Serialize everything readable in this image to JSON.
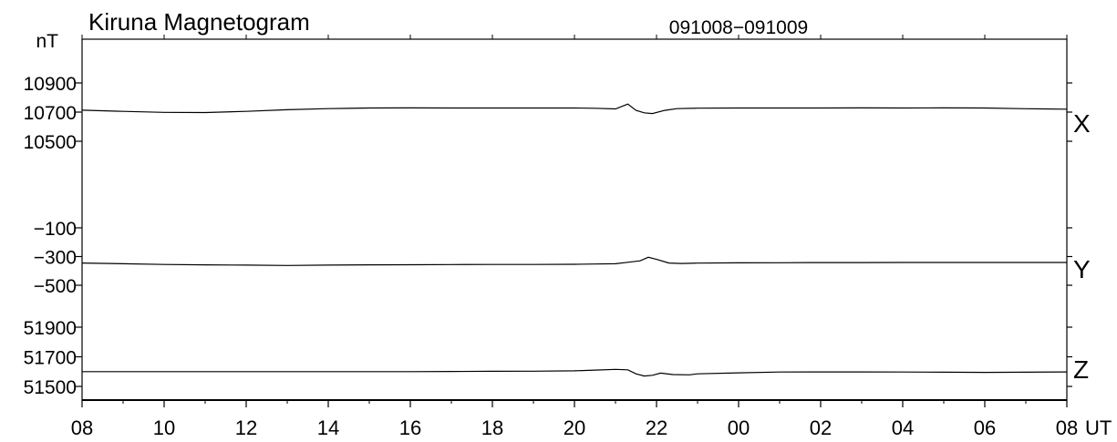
{
  "chart_data": {
    "type": "line",
    "title": "Kiruna Magnetogram",
    "date_range": "091008−091009",
    "y_unit": "nT",
    "x_unit": "UT",
    "x_tick_labels": [
      "08",
      "10",
      "12",
      "14",
      "16",
      "18",
      "20",
      "22",
      "00",
      "02",
      "04",
      "06",
      "08"
    ],
    "x_range_hours": [
      8,
      32
    ],
    "grid": false,
    "panels": [
      {
        "name": "X",
        "tick_labels": [
          "10900",
          "10700",
          "10500"
        ],
        "tick_values": [
          10900,
          10700,
          10500
        ],
        "x": [
          8,
          9,
          10,
          11,
          12,
          13,
          14,
          15,
          16,
          17,
          18,
          19,
          20,
          20.5,
          21,
          21.3,
          21.5,
          21.7,
          21.9,
          22.2,
          22.5,
          23,
          24,
          25,
          26,
          27,
          28,
          29,
          30,
          31,
          32
        ],
        "values": [
          10713,
          10705,
          10698,
          10697,
          10705,
          10716,
          10724,
          10728,
          10729,
          10728,
          10728,
          10728,
          10728,
          10726,
          10722,
          10755,
          10712,
          10695,
          10690,
          10712,
          10724,
          10727,
          10728,
          10728,
          10728,
          10729,
          10728,
          10729,
          10728,
          10723,
          10720
        ]
      },
      {
        "name": "Y",
        "tick_labels": [
          "−100",
          "−300",
          "−500"
        ],
        "tick_values": [
          -100,
          -300,
          -500
        ],
        "x": [
          8,
          9,
          10,
          11,
          12,
          13,
          14,
          15,
          16,
          17,
          18,
          19,
          20,
          20.5,
          21,
          21.3,
          21.6,
          21.8,
          22.0,
          22.3,
          22.6,
          23,
          24,
          25,
          26,
          27,
          28,
          29,
          30,
          31,
          32
        ],
        "values": [
          -345,
          -350,
          -355,
          -358,
          -360,
          -362,
          -360,
          -358,
          -357,
          -356,
          -355,
          -355,
          -354,
          -352,
          -350,
          -340,
          -330,
          -305,
          -320,
          -345,
          -348,
          -346,
          -344,
          -343,
          -342,
          -342,
          -341,
          -341,
          -341,
          -341,
          -341
        ]
      },
      {
        "name": "Z",
        "tick_labels": [
          "51900",
          "51700",
          "51500"
        ],
        "tick_values": [
          51900,
          51700,
          51500
        ],
        "x": [
          8,
          9,
          10,
          11,
          12,
          13,
          14,
          15,
          16,
          17,
          18,
          19,
          20,
          20.5,
          21,
          21.3,
          21.5,
          21.7,
          21.9,
          22.1,
          22.4,
          22.8,
          23,
          24,
          25,
          26,
          27,
          28,
          29,
          30,
          31,
          32
        ],
        "values": [
          51600,
          51600,
          51600,
          51600,
          51600,
          51600,
          51600,
          51600,
          51600,
          51601,
          51602,
          51603,
          51605,
          51610,
          51615,
          51612,
          51585,
          51570,
          51575,
          51590,
          51580,
          51578,
          51585,
          51592,
          51597,
          51598,
          51598,
          51597,
          51596,
          51595,
          51596,
          51598
        ]
      }
    ]
  }
}
